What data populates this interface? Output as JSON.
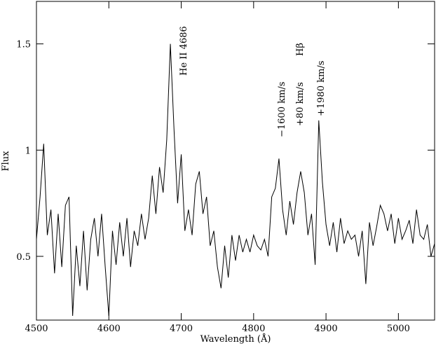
{
  "chart_data": {
    "type": "line",
    "xlabel": "Wavelength (Å)",
    "ylabel": "Flux",
    "annotations": [
      "He II 4686",
      "Hβ",
      "−1600 km/s",
      "+80 km/s",
      "+1980 km/s"
    ],
    "xlim": [
      4500,
      5050
    ],
    "ylim": [
      0.2,
      1.7
    ],
    "xticks": [
      4500,
      4600,
      4700,
      4800,
      4900,
      5000
    ],
    "yticks": [
      0.5,
      1,
      1.5
    ],
    "grid": false,
    "series": [
      {
        "color": "#000000",
        "x": [
          4500,
          4505,
          4510,
          4515,
          4520,
          4525,
          4530,
          4535,
          4540,
          4545,
          4550,
          4555,
          4560,
          4565,
          4570,
          4575,
          4580,
          4585,
          4590,
          4595,
          4600,
          4605,
          4610,
          4615,
          4620,
          4625,
          4630,
          4635,
          4640,
          4645,
          4650,
          4655,
          4660,
          4665,
          4670,
          4675,
          4680,
          4685,
          4690,
          4695,
          4700,
          4705,
          4710,
          4715,
          4720,
          4725,
          4730,
          4735,
          4740,
          4745,
          4750,
          4755,
          4760,
          4765,
          4770,
          4775,
          4780,
          4785,
          4790,
          4795,
          4800,
          4805,
          4810,
          4815,
          4820,
          4825,
          4830,
          4835,
          4840,
          4845,
          4850,
          4855,
          4860,
          4865,
          4870,
          4875,
          4880,
          4885,
          4890,
          4895,
          4900,
          4905,
          4910,
          4915,
          4920,
          4925,
          4930,
          4935,
          4940,
          4945,
          4950,
          4955,
          4960,
          4965,
          4970,
          4975,
          4980,
          4985,
          4990,
          4995,
          5000,
          5005,
          5010,
          5015,
          5020,
          5025,
          5030,
          5035,
          5040,
          5045,
          5050
        ],
        "values": [
          0.58,
          0.78,
          1.03,
          0.6,
          0.72,
          0.42,
          0.7,
          0.45,
          0.74,
          0.78,
          0.22,
          0.55,
          0.36,
          0.62,
          0.34,
          0.58,
          0.68,
          0.5,
          0.7,
          0.45,
          0.22,
          0.62,
          0.46,
          0.66,
          0.5,
          0.68,
          0.45,
          0.62,
          0.55,
          0.7,
          0.58,
          0.68,
          0.88,
          0.7,
          0.92,
          0.8,
          1.05,
          1.5,
          1.1,
          0.75,
          0.98,
          0.62,
          0.72,
          0.6,
          0.84,
          0.9,
          0.7,
          0.78,
          0.55,
          0.62,
          0.45,
          0.35,
          0.55,
          0.4,
          0.6,
          0.48,
          0.6,
          0.52,
          0.58,
          0.52,
          0.6,
          0.55,
          0.53,
          0.58,
          0.5,
          0.78,
          0.82,
          0.96,
          0.72,
          0.6,
          0.76,
          0.65,
          0.8,
          0.9,
          0.8,
          0.6,
          0.7,
          0.46,
          1.14,
          0.85,
          0.65,
          0.55,
          0.66,
          0.52,
          0.68,
          0.56,
          0.62,
          0.58,
          0.6,
          0.5,
          0.62,
          0.37,
          0.66,
          0.55,
          0.64,
          0.74,
          0.7,
          0.62,
          0.7,
          0.56,
          0.68,
          0.58,
          0.62,
          0.67,
          0.56,
          0.72,
          0.6,
          0.58,
          0.65,
          0.5,
          0.56
        ]
      }
    ]
  }
}
